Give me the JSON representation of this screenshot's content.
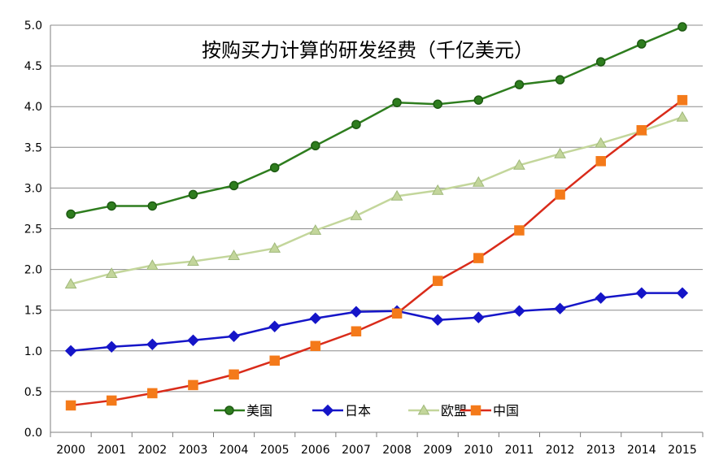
{
  "chart_data": {
    "type": "line",
    "title": "按购买力计算的研发经费（千亿美元）",
    "xlabel": "",
    "ylabel": "",
    "x": [
      "2000",
      "2001",
      "2002",
      "2003",
      "2004",
      "2005",
      "2006",
      "2007",
      "2008",
      "2009",
      "2010",
      "2011",
      "2012",
      "2013",
      "2014",
      "2015"
    ],
    "ylim": [
      0,
      5.0
    ],
    "yticks": [
      "0.0",
      "0.5",
      "1.0",
      "1.5",
      "2.0",
      "2.5",
      "3.0",
      "3.5",
      "4.0",
      "4.5",
      "5.0"
    ],
    "grid": "horizontal",
    "legend_position": "bottom-center",
    "series": [
      {
        "name": "美国",
        "color": "#2e7d1e",
        "marker": "circle",
        "values": [
          2.68,
          2.78,
          2.78,
          2.92,
          3.03,
          3.25,
          3.52,
          3.78,
          4.05,
          4.03,
          4.08,
          4.27,
          4.33,
          4.55,
          4.77,
          4.98
        ]
      },
      {
        "name": "日本",
        "color": "#1515c8",
        "marker": "diamond",
        "values": [
          1.0,
          1.05,
          1.08,
          1.13,
          1.18,
          1.3,
          1.4,
          1.48,
          1.49,
          1.38,
          1.41,
          1.49,
          1.52,
          1.65,
          1.71,
          1.71
        ]
      },
      {
        "name": "欧盟",
        "color": "#c3d69b",
        "marker": "triangle",
        "values": [
          1.82,
          1.95,
          2.05,
          2.1,
          2.17,
          2.26,
          2.48,
          2.66,
          2.9,
          2.97,
          3.07,
          3.28,
          3.42,
          3.55,
          3.7,
          3.87
        ]
      },
      {
        "name": "中国",
        "color": "#d92b1a",
        "marker": "square",
        "marker_color": "#f47a1a",
        "values": [
          0.33,
          0.39,
          0.48,
          0.58,
          0.71,
          0.88,
          1.06,
          1.24,
          1.46,
          1.86,
          2.14,
          2.48,
          2.92,
          3.33,
          3.71,
          4.08
        ]
      }
    ]
  }
}
